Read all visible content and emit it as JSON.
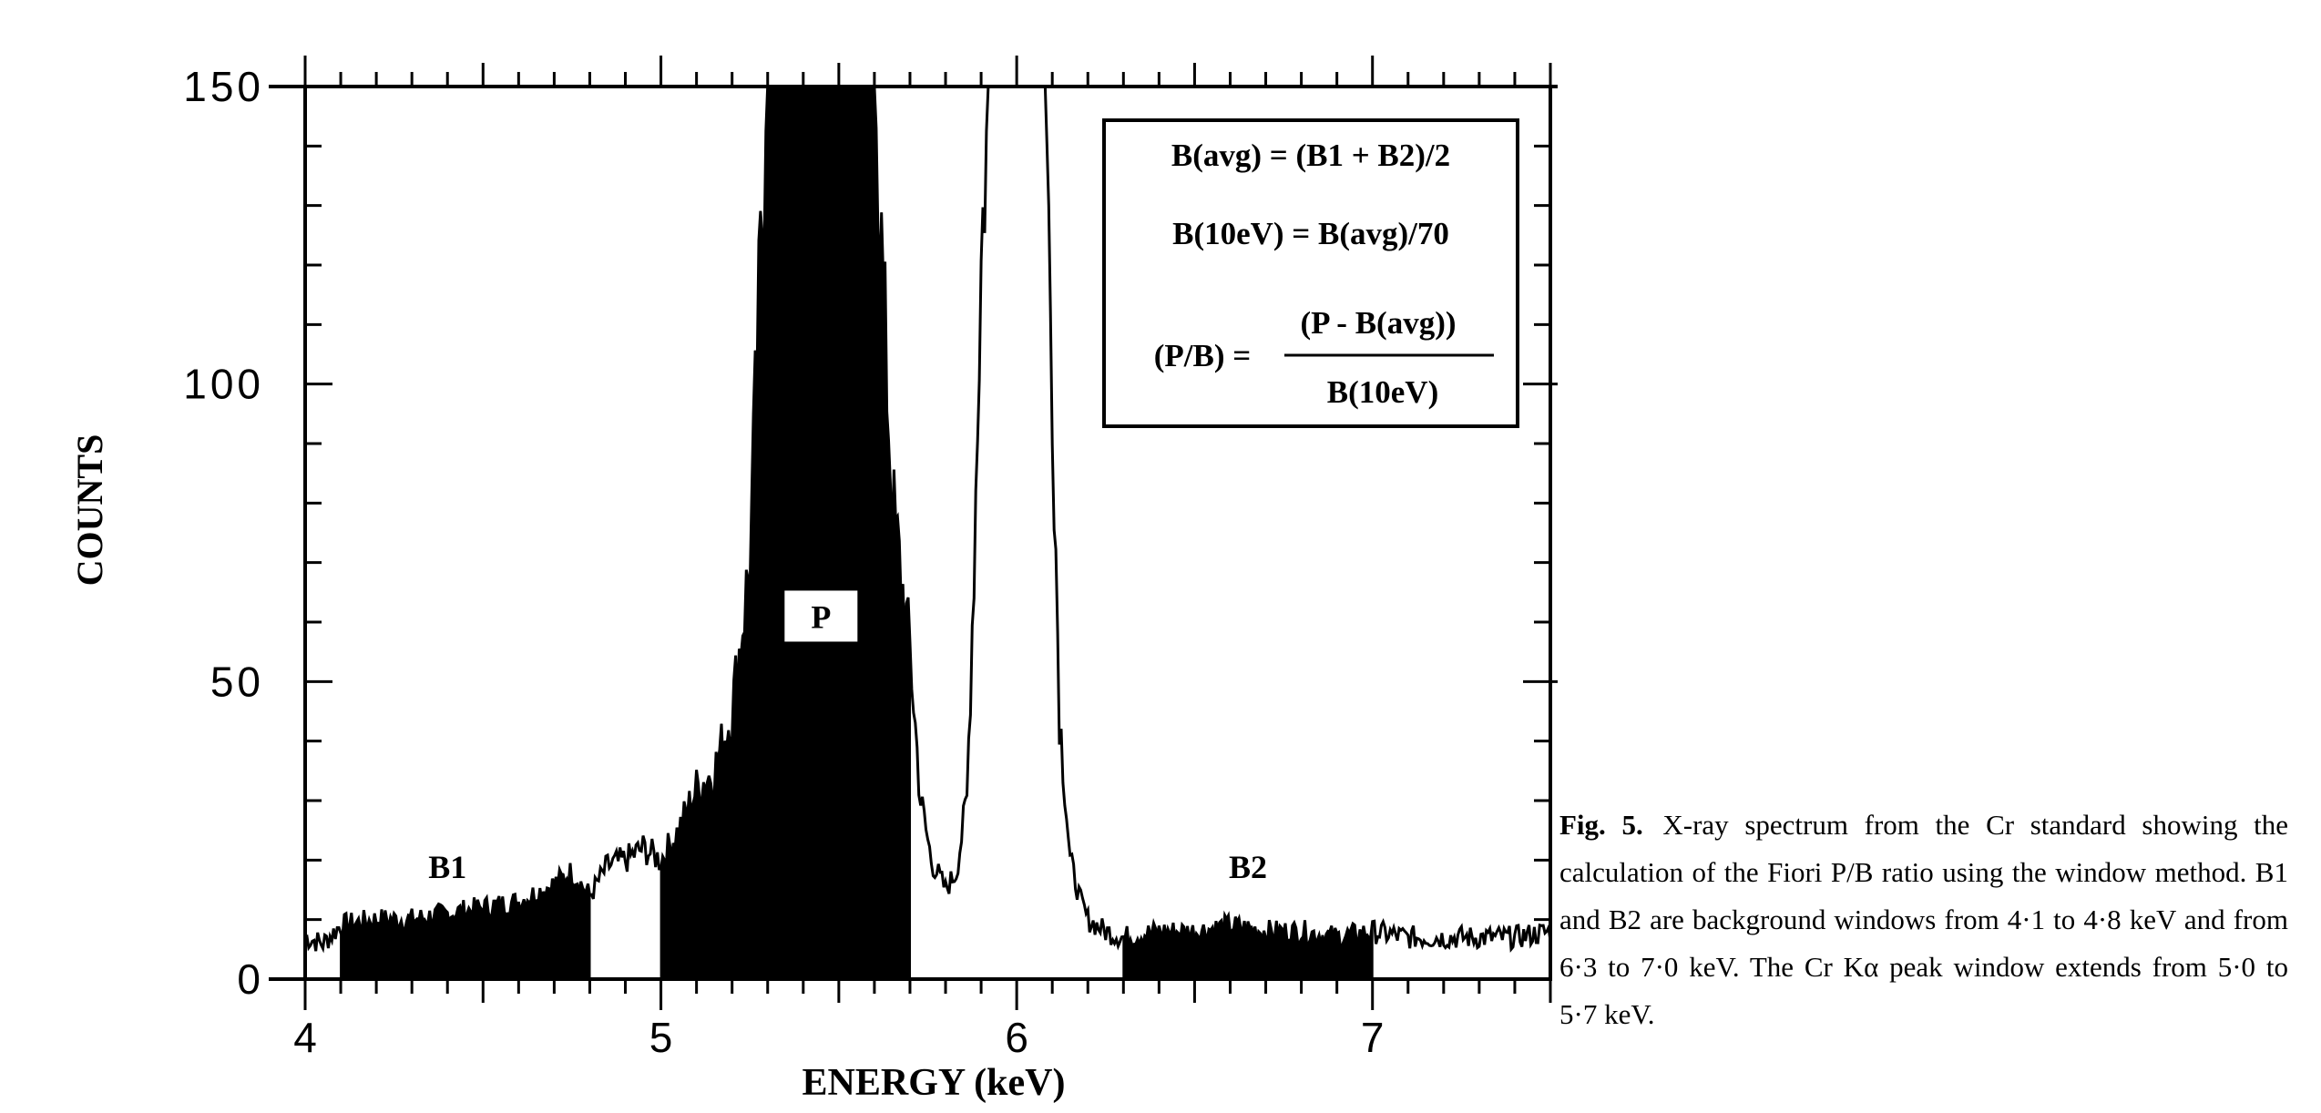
{
  "chart_data": {
    "type": "area",
    "xlabel": "ENERGY (keV)",
    "ylabel": "COUNTS",
    "xlim": [
      4.0,
      7.5
    ],
    "ylim": [
      0,
      150
    ],
    "x_major_ticks": [
      4,
      5,
      6,
      7
    ],
    "x_tick_labels": [
      "4",
      "5",
      "6",
      "7"
    ],
    "x_minor_step": 0.1,
    "y_major_ticks": [
      0,
      50,
      100,
      150
    ],
    "y_tick_labels": [
      "0",
      "50",
      "100",
      "150"
    ],
    "y_minor_step": 10,
    "grid": false,
    "windows": [
      {
        "label": "B1",
        "from": 4.1,
        "to": 4.8
      },
      {
        "label": "P",
        "from": 5.0,
        "to": 5.7
      },
      {
        "label": "B2",
        "from": 6.3,
        "to": 7.0
      }
    ],
    "spectrum": {
      "x": [
        4.0,
        4.05,
        4.1,
        4.2,
        4.3,
        4.4,
        4.5,
        4.6,
        4.7,
        4.75,
        4.8,
        4.85,
        4.9,
        4.95,
        5.0,
        5.05,
        5.1,
        5.15,
        5.2,
        5.25,
        5.28,
        5.3,
        5.4,
        5.5,
        5.55,
        5.6,
        5.65,
        5.7,
        5.73,
        5.76,
        5.8,
        5.83,
        5.86,
        5.88,
        5.9,
        5.92,
        5.94,
        6.06,
        6.08,
        6.1,
        6.12,
        6.15,
        6.18,
        6.2,
        6.25,
        6.3,
        6.4,
        6.5,
        6.6,
        6.7,
        6.8,
        6.9,
        7.0,
        7.1,
        7.2,
        7.3,
        7.4,
        7.5
      ],
      "y": [
        7,
        6,
        9,
        10,
        10,
        11,
        12,
        13,
        16,
        18,
        14,
        19,
        20,
        22,
        20,
        25,
        32,
        35,
        45,
        70,
        120,
        150,
        150,
        150,
        150,
        150,
        80,
        55,
        30,
        20,
        15,
        18,
        30,
        70,
        120,
        150,
        150,
        150,
        150,
        100,
        45,
        20,
        13,
        10,
        8,
        7,
        8,
        8,
        9,
        8,
        8,
        7,
        8,
        7,
        7,
        7,
        7,
        8
      ]
    },
    "annotations": [
      {
        "text": "B1",
        "x": 4.4,
        "y": 19
      },
      {
        "text": "P",
        "x": 5.45,
        "y": 61
      },
      {
        "text": "B2",
        "x": 6.65,
        "y": 19
      }
    ],
    "legend_box": {
      "line1": "B(avg) = (B1 + B2)/2",
      "line2": "B(10eV) = B(avg)/70",
      "line3_lhs": "(P/B) =",
      "line3_num": "(P - B(avg))",
      "line3_den": "B(10eV)"
    }
  },
  "caption": {
    "label": "Fig. 5.",
    "text": "X-ray spectrum from the Cr standard showing the calculation of the Fiori P/B ratio using the window method. B1 and B2 are background windows from 4·1 to 4·8 keV and from 6·3 to 7·0 keV. The Cr Kα peak window extends from 5·0 to 5·7 keV."
  }
}
